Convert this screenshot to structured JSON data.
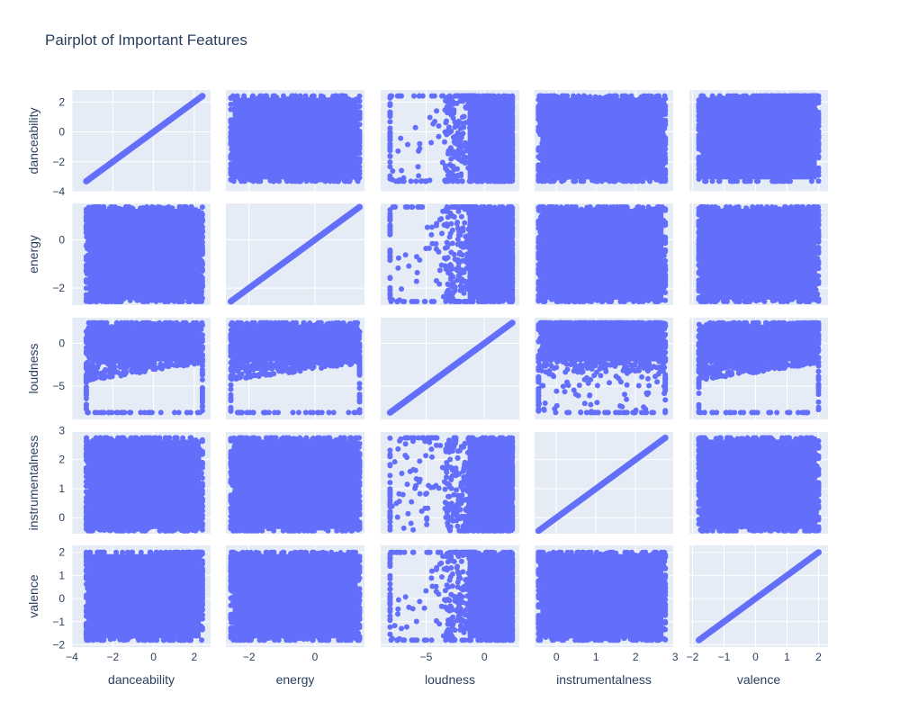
{
  "chart_data": {
    "type": "scatter",
    "title": "Pairplot of Important Features",
    "subtype": "scatter-matrix",
    "marker_color": "#636efa",
    "panel_bg": "#e5ecf6",
    "grid_color": "#ffffff",
    "dimensions": [
      {
        "name": "danceability",
        "range": [
          -4,
          2.8
        ],
        "ticks": [
          -4,
          -2,
          0,
          2
        ],
        "tick_labels": [
          "−4",
          "−2",
          "0",
          "2"
        ],
        "data_min": -3.3,
        "data_max": 2.4
      },
      {
        "name": "energy",
        "range": [
          -2.7,
          1.5
        ],
        "ticks": [
          -2,
          0
        ],
        "tick_labels": [
          "−2",
          "0"
        ],
        "data_min": -2.55,
        "data_max": 1.35
      },
      {
        "name": "loudness",
        "range": [
          -8.9,
          3.0
        ],
        "ticks": [
          -5,
          0
        ],
        "tick_labels": [
          "−5",
          "0"
        ],
        "data_min": -8.1,
        "data_max": 2.4
      },
      {
        "name": "instrumentalness",
        "range": [
          -0.55,
          2.95
        ],
        "ticks": [
          0,
          1,
          2,
          3
        ],
        "tick_labels": [
          "0",
          "1",
          "2",
          "3"
        ],
        "data_min": -0.45,
        "data_max": 2.75
      },
      {
        "name": "valence",
        "range": [
          -2.1,
          2.3
        ],
        "ticks": [
          -2,
          -1,
          0,
          1,
          2
        ],
        "tick_labels": [
          "−2",
          "−1",
          "0",
          "1",
          "2"
        ],
        "data_min": -1.8,
        "data_max": 2.0
      }
    ],
    "xlabel": "",
    "ylabel": "",
    "grid": true,
    "legend": "none"
  }
}
